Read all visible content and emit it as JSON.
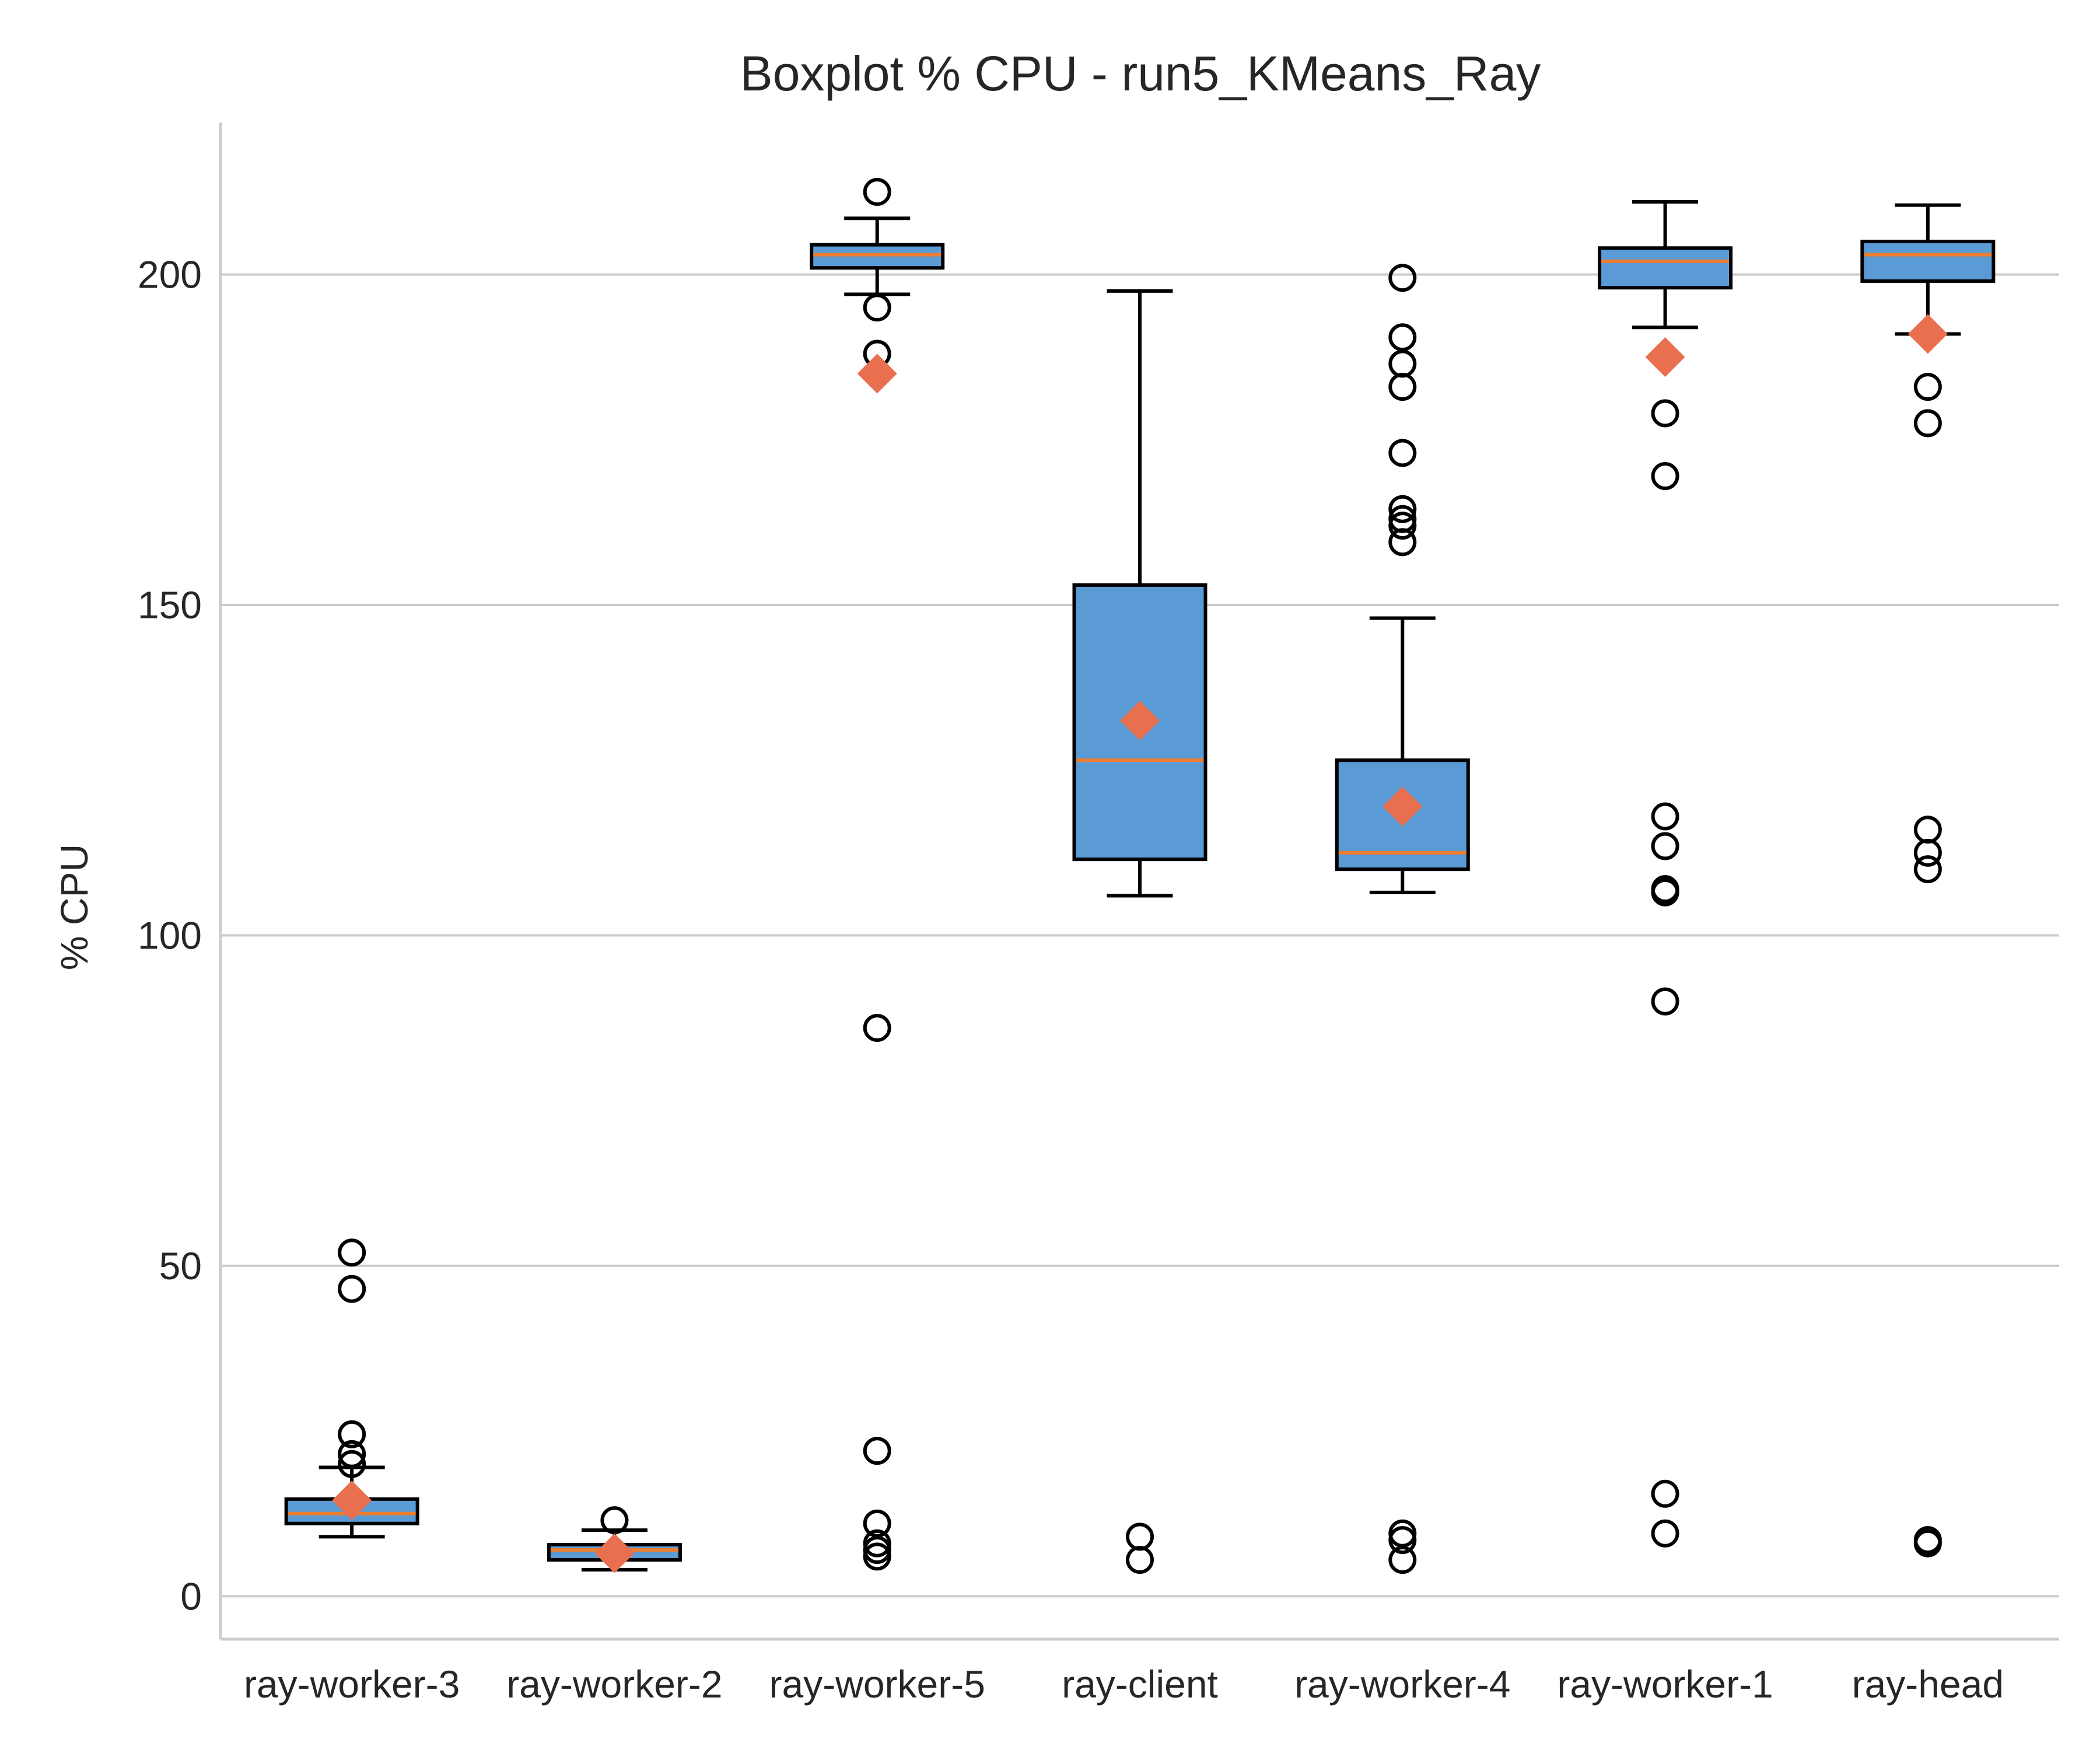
{
  "chart_data": {
    "type": "boxplot",
    "title": "Boxplot % CPU - run5_KMeans_Ray",
    "xlabel": "",
    "ylabel": "% CPU",
    "ylim": [
      -6.5,
      223
    ],
    "yticks": [
      0,
      50,
      100,
      150,
      200
    ],
    "grid": "horizontal",
    "colors": {
      "box_fill": "#5b9bd5",
      "median": "#ed7d31",
      "mean_marker": "#e8704f",
      "grid": "#cccccc",
      "axis": "#cccccc"
    },
    "categories": [
      "ray-worker-3",
      "ray-worker-2",
      "ray-worker-5",
      "ray-client",
      "ray-worker-4",
      "ray-worker-1",
      "ray-head"
    ],
    "boxes": [
      {
        "label": "ray-worker-3",
        "whisker_low": 9,
        "q1": 11,
        "median": 12.5,
        "q3": 14.7,
        "whisker_high": 19.5,
        "mean": 14.5,
        "outliers": [
          52,
          46.5,
          24.5,
          21.5,
          20
        ]
      },
      {
        "label": "ray-worker-2",
        "whisker_low": 4,
        "q1": 5.5,
        "median": 7,
        "q3": 7.8,
        "whisker_high": 10,
        "mean": 6.5,
        "outliers": [
          11.5
        ]
      },
      {
        "label": "ray-worker-5",
        "whisker_low": 197,
        "q1": 201,
        "median": 203,
        "q3": 204.5,
        "whisker_high": 208.5,
        "mean": 185,
        "outliers": [
          212.5,
          195,
          188,
          86,
          22,
          11,
          8,
          7,
          6
        ]
      },
      {
        "label": "ray-client",
        "whisker_low": 106,
        "q1": 111.5,
        "median": 126.5,
        "q3": 153,
        "whisker_high": 197.5,
        "mean": 132.5,
        "outliers": [
          9,
          5.5
        ]
      },
      {
        "label": "ray-worker-4",
        "whisker_low": 106.5,
        "q1": 110,
        "median": 112.5,
        "q3": 126.5,
        "whisker_high": 148,
        "mean": 119.5,
        "outliers": [
          199.5,
          190.5,
          186.5,
          183,
          173,
          164.5,
          163,
          162,
          159.5,
          9.5,
          8.5,
          5.5
        ]
      },
      {
        "label": "ray-worker-1",
        "whisker_low": 192,
        "q1": 198,
        "median": 202,
        "q3": 204,
        "whisker_high": 211,
        "mean": 187.5,
        "outliers": [
          179,
          169.5,
          118,
          113.5,
          107,
          106.5,
          90,
          15.5,
          9.5
        ]
      },
      {
        "label": "ray-head",
        "whisker_low": 191,
        "q1": 199,
        "median": 203,
        "q3": 205,
        "whisker_high": 210.5,
        "mean": 191,
        "outliers": [
          183,
          177.5,
          116,
          112.5,
          110,
          8.5,
          8
        ]
      }
    ]
  }
}
